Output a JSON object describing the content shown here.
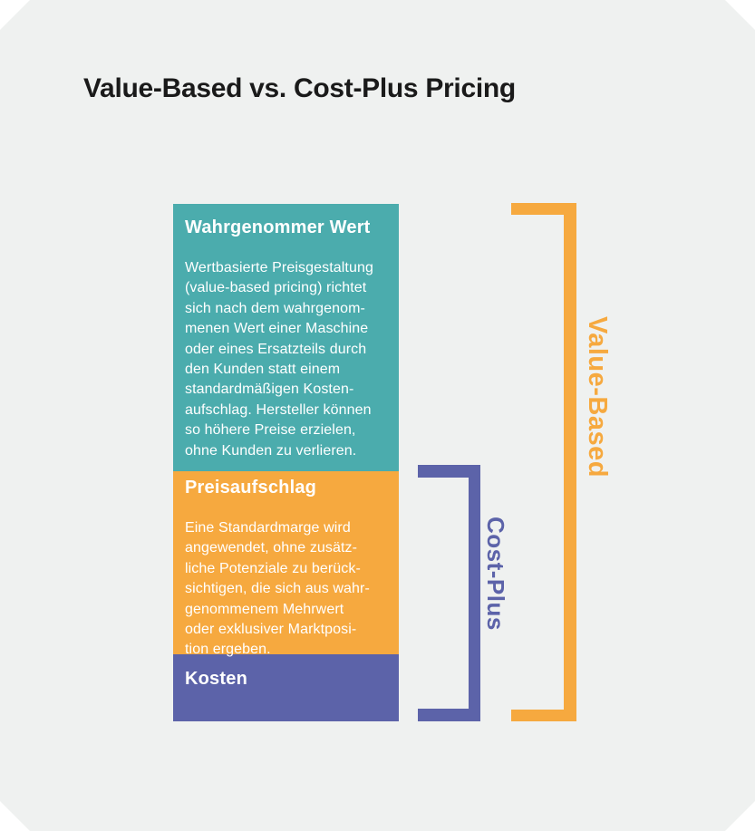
{
  "title": "Value-Based vs. Cost-Plus Pricing",
  "colors": {
    "canvas": "#ffffff",
    "card": "#eff1f0",
    "teal": "#4bacad",
    "orange": "#f6a93f",
    "purple": "#5c63a9",
    "title-text": "#1a1a1a",
    "block-text": "#ffffff"
  },
  "blocks": [
    {
      "id": "perceived-value",
      "heading": "Wahrgenommer Wert",
      "body": "Wertbasierte Preisgestaltung\n(value-based pricing) richtet\nsich nach dem wahrgenom-\nmenen Wert einer Maschine\noder eines Ersatzteils durch\nden Kunden statt einem\nstandardmäßigen Kosten-\naufschlag. Hersteller können\nso höhere Preise erzielen,\nohne Kunden zu verlieren."
    },
    {
      "id": "markup",
      "heading": "Preisaufschlag",
      "body": "Eine Standardmarge wird\nangewendet, ohne zusätz-\nliche Potenziale zu berück-\nsichtigen, die sich aus wahr-\ngenommenem Mehrwert\noder exklusiver Marktposi-\ntion ergeben."
    },
    {
      "id": "costs",
      "heading": "Kosten"
    }
  ],
  "brackets": [
    {
      "id": "cost-plus",
      "label": "Cost-Plus"
    },
    {
      "id": "value-based",
      "label": "Value-Based"
    }
  ]
}
